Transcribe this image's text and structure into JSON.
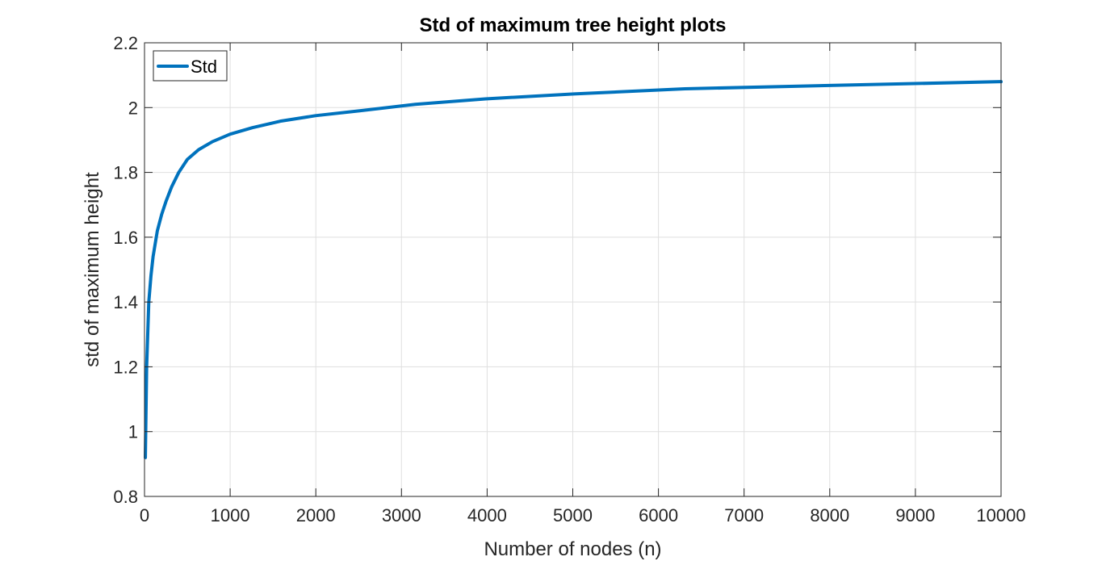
{
  "chart_data": {
    "type": "line",
    "title": "Std of maximum tree height plots",
    "xlabel": "Number of nodes (n)",
    "ylabel": "std of maximum height",
    "xlim": [
      0,
      10000
    ],
    "ylim": [
      0.8,
      2.2
    ],
    "xticks": [
      0,
      1000,
      2000,
      3000,
      4000,
      5000,
      6000,
      7000,
      8000,
      9000,
      10000
    ],
    "yticks": [
      0.8,
      1,
      1.2,
      1.4,
      1.6,
      1.8,
      2,
      2.2
    ],
    "xtick_labels": [
      "0",
      "1000",
      "2000",
      "3000",
      "4000",
      "5000",
      "6000",
      "7000",
      "8000",
      "9000",
      "10000"
    ],
    "ytick_labels": [
      "0.8",
      "1",
      "1.2",
      "1.4",
      "1.6",
      "1.8",
      "2",
      "2.2"
    ],
    "grid": true,
    "legend": {
      "placement": "top-left",
      "entries": [
        "Std"
      ]
    },
    "series": [
      {
        "name": "Std",
        "color": "#0072BD",
        "x": [
          10,
          25,
          50,
          75,
          100,
          150,
          200,
          250,
          316,
          400,
          500,
          631,
          794,
          1000,
          1259,
          1585,
          1995,
          2512,
          3162,
          3981,
          5012,
          6310,
          7943,
          10000
        ],
        "y": [
          0.92,
          1.2,
          1.4,
          1.48,
          1.54,
          1.62,
          1.67,
          1.71,
          1.755,
          1.8,
          1.84,
          1.87,
          1.895,
          1.918,
          1.938,
          1.958,
          1.975,
          1.99,
          2.01,
          2.027,
          2.042,
          2.058,
          2.068,
          2.08
        ]
      }
    ]
  }
}
